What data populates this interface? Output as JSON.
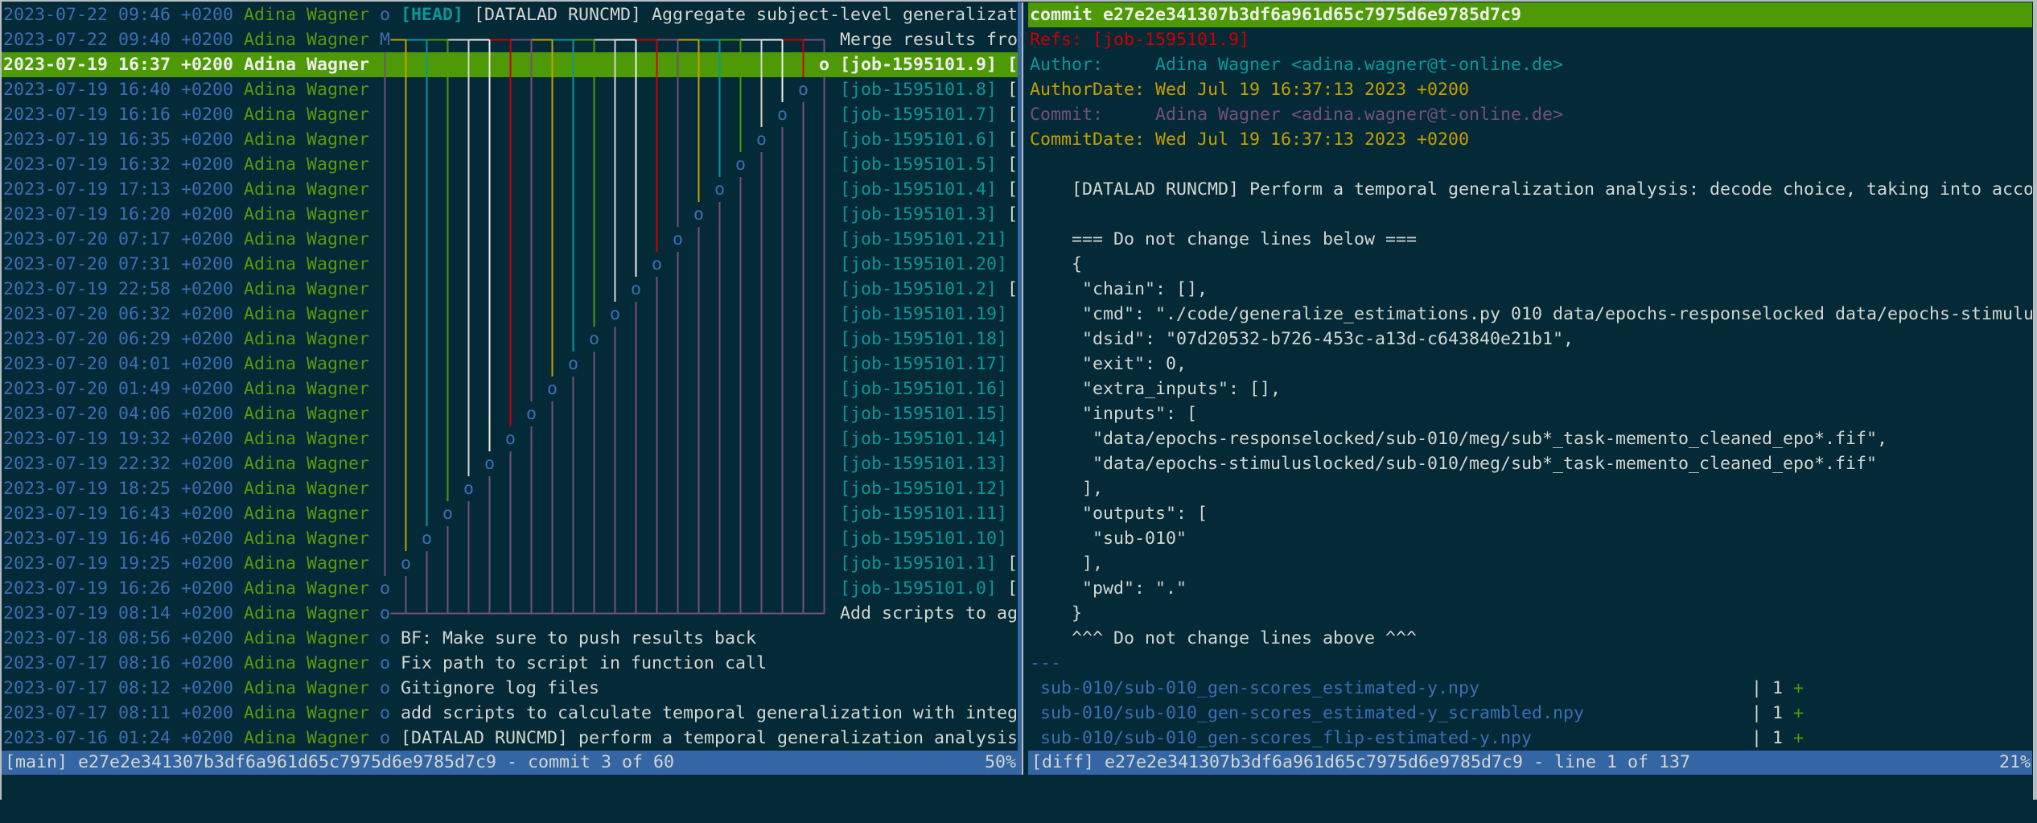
{
  "colors": {
    "background": "#042937",
    "date": "#3c6fb4",
    "author": "#5a9a0c",
    "ref": "#06989a",
    "selection": "#4e9a06",
    "status_bar": "#3465a4",
    "graph_cycle": [
      "#c4a000",
      "#06989a",
      "#4e9a06",
      "#d3d7cf",
      "#eeeeec",
      "#cc0000",
      "#75507b"
    ],
    "graph_lower": "#75507b"
  },
  "main_view": {
    "commits": [
      {
        "date": "2023-07-22 09:46 +0200",
        "author": "Adina Wagner",
        "lane": 0,
        "symbol": "o",
        "refs": [
          "[HEAD]"
        ],
        "head": true,
        "message": "[DATALAD RUNCMD] Aggregate subject-level generalizat"
      },
      {
        "date": "2023-07-22 09:40 +0200",
        "author": "Adina Wagner",
        "lane": 0,
        "symbol": "M",
        "merge": true,
        "refs": [],
        "message": "Merge results fro"
      },
      {
        "date": "2023-07-19 16:37 +0200",
        "author": "Adina Wagner",
        "lane": 21,
        "symbol": "o",
        "selected": true,
        "refs": [
          "[job-1595101.9]"
        ],
        "message": "["
      },
      {
        "date": "2023-07-19 16:40 +0200",
        "author": "Adina Wagner",
        "lane": 20,
        "symbol": "o",
        "refs": [
          "[job-1595101.8]"
        ],
        "message": "["
      },
      {
        "date": "2023-07-19 16:16 +0200",
        "author": "Adina Wagner",
        "lane": 19,
        "symbol": "o",
        "refs": [
          "[job-1595101.7]"
        ],
        "message": "["
      },
      {
        "date": "2023-07-19 16:35 +0200",
        "author": "Adina Wagner",
        "lane": 18,
        "symbol": "o",
        "refs": [
          "[job-1595101.6]"
        ],
        "message": "["
      },
      {
        "date": "2023-07-19 16:32 +0200",
        "author": "Adina Wagner",
        "lane": 17,
        "symbol": "o",
        "refs": [
          "[job-1595101.5]"
        ],
        "message": "["
      },
      {
        "date": "2023-07-19 17:13 +0200",
        "author": "Adina Wagner",
        "lane": 16,
        "symbol": "o",
        "refs": [
          "[job-1595101.4]"
        ],
        "message": "["
      },
      {
        "date": "2023-07-19 16:20 +0200",
        "author": "Adina Wagner",
        "lane": 15,
        "symbol": "o",
        "refs": [
          "[job-1595101.3]"
        ],
        "message": "["
      },
      {
        "date": "2023-07-20 07:17 +0200",
        "author": "Adina Wagner",
        "lane": 14,
        "symbol": "o",
        "refs": [
          "[job-1595101.21]"
        ],
        "message": ""
      },
      {
        "date": "2023-07-20 07:31 +0200",
        "author": "Adina Wagner",
        "lane": 13,
        "symbol": "o",
        "refs": [
          "[job-1595101.20]"
        ],
        "message": ""
      },
      {
        "date": "2023-07-19 22:58 +0200",
        "author": "Adina Wagner",
        "lane": 12,
        "symbol": "o",
        "refs": [
          "[job-1595101.2]"
        ],
        "message": "["
      },
      {
        "date": "2023-07-20 06:32 +0200",
        "author": "Adina Wagner",
        "lane": 11,
        "symbol": "o",
        "refs": [
          "[job-1595101.19]"
        ],
        "message": ""
      },
      {
        "date": "2023-07-20 06:29 +0200",
        "author": "Adina Wagner",
        "lane": 10,
        "symbol": "o",
        "refs": [
          "[job-1595101.18]"
        ],
        "message": ""
      },
      {
        "date": "2023-07-20 04:01 +0200",
        "author": "Adina Wagner",
        "lane": 9,
        "symbol": "o",
        "refs": [
          "[job-1595101.17]"
        ],
        "message": ""
      },
      {
        "date": "2023-07-20 01:49 +0200",
        "author": "Adina Wagner",
        "lane": 8,
        "symbol": "o",
        "refs": [
          "[job-1595101.16]"
        ],
        "message": ""
      },
      {
        "date": "2023-07-20 04:06 +0200",
        "author": "Adina Wagner",
        "lane": 7,
        "symbol": "o",
        "refs": [
          "[job-1595101.15]"
        ],
        "message": ""
      },
      {
        "date": "2023-07-19 19:32 +0200",
        "author": "Adina Wagner",
        "lane": 6,
        "symbol": "o",
        "refs": [
          "[job-1595101.14]"
        ],
        "message": ""
      },
      {
        "date": "2023-07-19 22:32 +0200",
        "author": "Adina Wagner",
        "lane": 5,
        "symbol": "o",
        "refs": [
          "[job-1595101.13]"
        ],
        "message": ""
      },
      {
        "date": "2023-07-19 18:25 +0200",
        "author": "Adina Wagner",
        "lane": 4,
        "symbol": "o",
        "refs": [
          "[job-1595101.12]"
        ],
        "message": ""
      },
      {
        "date": "2023-07-19 16:43 +0200",
        "author": "Adina Wagner",
        "lane": 3,
        "symbol": "o",
        "refs": [
          "[job-1595101.11]"
        ],
        "message": ""
      },
      {
        "date": "2023-07-19 16:46 +0200",
        "author": "Adina Wagner",
        "lane": 2,
        "symbol": "o",
        "refs": [
          "[job-1595101.10]"
        ],
        "message": ""
      },
      {
        "date": "2023-07-19 19:25 +0200",
        "author": "Adina Wagner",
        "lane": 1,
        "symbol": "o",
        "refs": [
          "[job-1595101.1]"
        ],
        "message": "["
      },
      {
        "date": "2023-07-19 16:26 +0200",
        "author": "Adina Wagner",
        "lane": 0,
        "symbol": "o",
        "refs": [
          "[job-1595101.0]"
        ],
        "message": "["
      },
      {
        "date": "2023-07-19 08:14 +0200",
        "author": "Adina Wagner",
        "lane": 0,
        "symbol": "o",
        "fork": true,
        "refs": [],
        "message": "Add scripts to ag"
      },
      {
        "date": "2023-07-18 08:56 +0200",
        "author": "Adina Wagner",
        "lane": 0,
        "symbol": "o",
        "refs": [],
        "message": "BF: Make sure to push results back"
      },
      {
        "date": "2023-07-17 08:16 +0200",
        "author": "Adina Wagner",
        "lane": 0,
        "symbol": "o",
        "refs": [],
        "message": "Fix path to script in function call"
      },
      {
        "date": "2023-07-17 08:12 +0200",
        "author": "Adina Wagner",
        "lane": 0,
        "symbol": "o",
        "refs": [],
        "message": "Gitignore log files"
      },
      {
        "date": "2023-07-17 08:11 +0200",
        "author": "Adina Wagner",
        "lane": 0,
        "symbol": "o",
        "refs": [],
        "message": "add scripts to calculate temporal generalization with integ"
      },
      {
        "date": "2023-07-16 01:24 +0200",
        "author": "Adina Wagner",
        "lane": 0,
        "symbol": "o",
        "refs": [],
        "message": "[DATALAD RUNCMD] perform a temporal generalization analysis"
      }
    ],
    "status": {
      "text": "[main] e27e2e341307b3df6a961d65c7975d6e9785d7c9 - commit 3 of 60",
      "percent": "50%"
    }
  },
  "diff_view": {
    "lines": [
      {
        "kind": "header",
        "text": "commit e27e2e341307b3df6a961d65c7975d6e9785d7c9"
      },
      {
        "kind": "refs",
        "text": "Refs: [job-1595101.9]"
      },
      {
        "kind": "author",
        "text": "Author:     Adina Wagner <adina.wagner@t-online.de>"
      },
      {
        "kind": "date",
        "text": "AuthorDate: Wed Jul 19 16:37:13 2023 +0200"
      },
      {
        "kind": "committer",
        "text": "Commit:     Adina Wagner <adina.wagner@t-online.de>"
      },
      {
        "kind": "date",
        "text": "CommitDate: Wed Jul 19 16:37:13 2023 +0200"
      },
      {
        "kind": "body",
        "text": ""
      },
      {
        "kind": "body",
        "text": "    [DATALAD RUNCMD] Perform a temporal generalization analysis: decode choice, taking into acco"
      },
      {
        "kind": "body",
        "text": ""
      },
      {
        "kind": "body",
        "text": "    === Do not change lines below ==="
      },
      {
        "kind": "body",
        "text": "    {"
      },
      {
        "kind": "body",
        "text": "     \"chain\": [],"
      },
      {
        "kind": "body",
        "text": "     \"cmd\": \"./code/generalize_estimations.py 010 data/epochs-responselocked data/epochs-stimulu"
      },
      {
        "kind": "body",
        "text": "     \"dsid\": \"07d20532-b726-453c-a13d-c643840e21b1\","
      },
      {
        "kind": "body",
        "text": "     \"exit\": 0,"
      },
      {
        "kind": "body",
        "text": "     \"extra_inputs\": [],"
      },
      {
        "kind": "body",
        "text": "     \"inputs\": ["
      },
      {
        "kind": "body",
        "text": "      \"data/epochs-responselocked/sub-010/meg/sub*_task-memento_cleaned_epo*.fif\","
      },
      {
        "kind": "body",
        "text": "      \"data/epochs-stimuluslocked/sub-010/meg/sub*_task-memento_cleaned_epo*.fif\""
      },
      {
        "kind": "body",
        "text": "     ],"
      },
      {
        "kind": "body",
        "text": "     \"outputs\": ["
      },
      {
        "kind": "body",
        "text": "      \"sub-010\""
      },
      {
        "kind": "body",
        "text": "     ],"
      },
      {
        "kind": "body",
        "text": "     \"pwd\": \".\""
      },
      {
        "kind": "body",
        "text": "    }"
      },
      {
        "kind": "body",
        "text": "    ^^^ Do not change lines above ^^^"
      },
      {
        "kind": "sep",
        "text": "---"
      }
    ],
    "diffstat": [
      {
        "file": " sub-010/sub-010_gen-scores_estimated-y.npy",
        "pipe": "|",
        "count": "1",
        "graph": "+"
      },
      {
        "file": " sub-010/sub-010_gen-scores_estimated-y_scrambled.npy",
        "pipe": "|",
        "count": "1",
        "graph": "+"
      },
      {
        "file": " sub-010/sub-010_gen-scores_flip-estimated-y.npy",
        "pipe": "|",
        "count": "1",
        "graph": "+"
      }
    ],
    "status": {
      "text": "[diff] e27e2e341307b3df6a961d65c7975d6e9785d7c9 - line 1 of 137",
      "percent": "21%"
    }
  }
}
